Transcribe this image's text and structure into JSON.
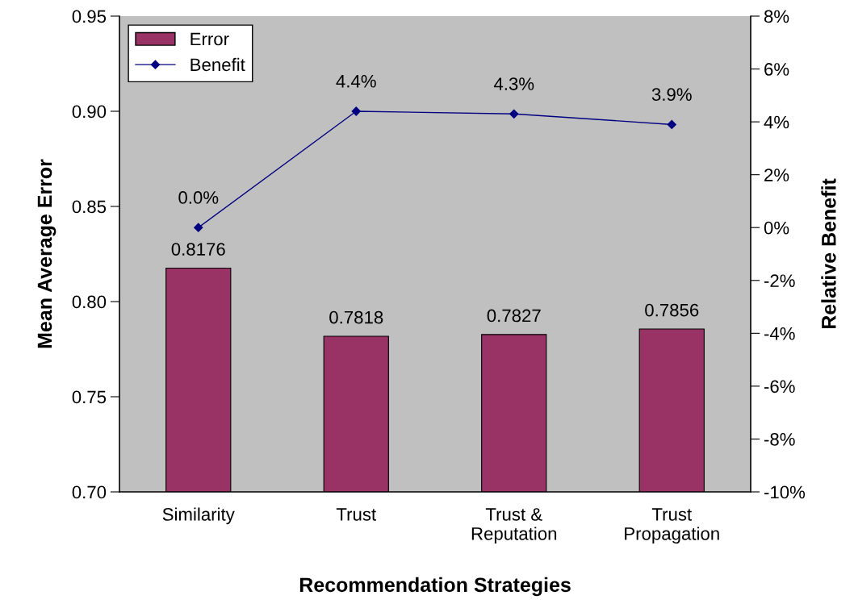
{
  "chart_data": {
    "type": "bar",
    "xlabel": "Recommendation Strategies",
    "ylabel": "Mean Average Error",
    "y2label": "Relative Benefit",
    "categories": [
      "Similarity",
      "Trust",
      "Trust &\nReputation",
      "Trust\nPropagation"
    ],
    "series": [
      {
        "name": "Error",
        "color": "#993366",
        "values": [
          0.8176,
          0.7818,
          0.7827,
          0.7856
        ],
        "value_labels": [
          "0.8176",
          "0.7818",
          "0.7827",
          "0.7856"
        ]
      },
      {
        "name": "Benefit",
        "type": "line",
        "axis": "y2",
        "color": "#000080",
        "marker": "diamond",
        "values": [
          0.0,
          4.4,
          4.3,
          3.9
        ],
        "value_labels": [
          "0.0%",
          "4.4%",
          "4.3%",
          "3.9%"
        ]
      }
    ],
    "ylim": [
      0.7,
      0.95
    ],
    "yticks": [
      {
        "value": 0.7,
        "label": "0.70"
      },
      {
        "value": 0.75,
        "label": "0.75"
      },
      {
        "value": 0.8,
        "label": "0.80"
      },
      {
        "value": 0.85,
        "label": "0.85"
      },
      {
        "value": 0.9,
        "label": "0.90"
      },
      {
        "value": 0.95,
        "label": "0.95"
      }
    ],
    "y2lim": [
      -10,
      8
    ],
    "y2ticks": [
      {
        "value": -10,
        "label": "-10%"
      },
      {
        "value": -8,
        "label": "-8%"
      },
      {
        "value": -6,
        "label": "-6%"
      },
      {
        "value": -4,
        "label": "-4%"
      },
      {
        "value": -2,
        "label": "-2%"
      },
      {
        "value": 0,
        "label": "0%"
      },
      {
        "value": 2,
        "label": "2%"
      },
      {
        "value": 4,
        "label": "4%"
      },
      {
        "value": 6,
        "label": "6%"
      },
      {
        "value": 8,
        "label": "8%"
      }
    ],
    "grid": false,
    "legend": "top left"
  }
}
